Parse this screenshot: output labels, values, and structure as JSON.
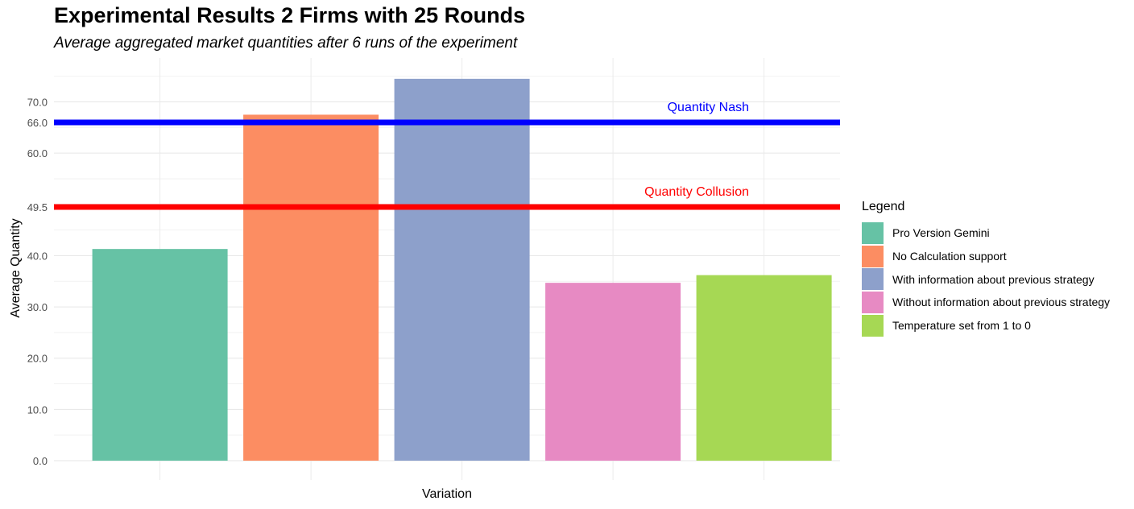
{
  "chart_data": {
    "type": "bar",
    "title": "Experimental Results 2 Firms with 25 Rounds",
    "subtitle": "Average aggregated market quantities after 6 runs of the experiment",
    "xlabel": "Variation",
    "ylabel": "Average Quantity",
    "categories": [
      "Pro Version Gemini",
      "No Calculation support",
      "With information about previous strategy",
      "Without information about previous strategy",
      "Temperature set from 1 to 0"
    ],
    "values": [
      41.3,
      67.5,
      74.5,
      34.7,
      36.2
    ],
    "colors": [
      "#66c2a5",
      "#fc8d62",
      "#8da0cb",
      "#e78ac3",
      "#a6d854"
    ],
    "ylim": [
      0,
      75
    ],
    "yticks": [
      "0.0",
      "10.0",
      "20.0",
      "30.0",
      "40.0",
      "49.5",
      "60.0",
      "66.0",
      "70.0"
    ],
    "reference_lines": [
      {
        "label": "Quantity Nash",
        "value": 66.0,
        "color": "#0000ff"
      },
      {
        "label": "Quantity Collusion",
        "value": 49.5,
        "color": "#ff0000"
      }
    ],
    "legend": {
      "title": "Legend",
      "position": "right"
    },
    "grid": true
  }
}
